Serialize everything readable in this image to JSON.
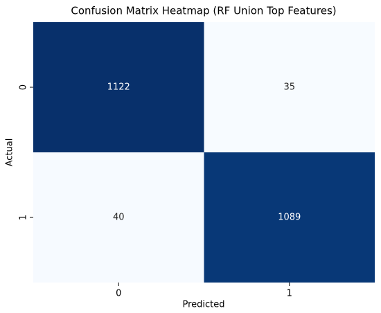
{
  "chart_data": {
    "type": "heatmap",
    "title": "Confusion Matrix Heatmap (RF Union Top Features)",
    "x_label": "Predicted",
    "y_label": "Actual",
    "x_categories": [
      "0",
      "1"
    ],
    "y_categories": [
      "0",
      "1"
    ],
    "values": [
      [
        1122,
        35
      ],
      [
        40,
        1089
      ]
    ],
    "colormap": [
      "#f7fbff",
      "#deebf7",
      "#c6dbef",
      "#9ecae1",
      "#6baed6",
      "#4292c6",
      "#2171b5",
      "#08519c",
      "#08306b"
    ]
  }
}
